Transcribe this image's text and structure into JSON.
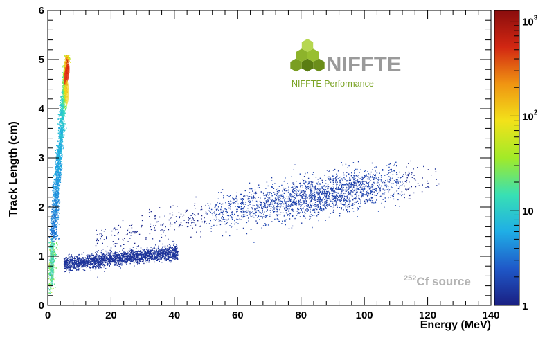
{
  "chart_data": {
    "type": "heatmap",
    "title": "",
    "xlabel": "Energy (MeV)",
    "ylabel": "Track Length (cm)",
    "xlim": [
      0,
      140
    ],
    "ylim": [
      0,
      6
    ],
    "x_ticks": [
      "0",
      "20",
      "40",
      "60",
      "80",
      "100",
      "120",
      "140"
    ],
    "y_ticks": [
      "0",
      "1",
      "2",
      "3",
      "4",
      "5",
      "6"
    ],
    "colorbar": {
      "scale": "log",
      "range": [
        1,
        1300
      ],
      "labels": [
        {
          "base": "1",
          "exp": "",
          "value": 1
        },
        {
          "base": "10",
          "exp": "",
          "value": 10
        },
        {
          "base": "10",
          "exp": "2",
          "value": 100
        },
        {
          "base": "10",
          "exp": "3",
          "value": 1000
        }
      ],
      "colors": [
        "#1a1f82",
        "#1f58c8",
        "#1faee6",
        "#38e0b4",
        "#a2ea28",
        "#f2e21a",
        "#f09512",
        "#d22712",
        "#8a0d0d"
      ]
    },
    "bands": [
      {
        "name": "",
        "kind": "alpha",
        "energy_range": [
          0,
          7
        ],
        "length_range": [
          0.3,
          5.1
        ],
        "peak": {
          "x": 6,
          "y": 4.7
        },
        "peak_count": 1300
      },
      {
        "name": "",
        "kind": "fission fragments",
        "energy_range": [
          10,
          125
        ],
        "length_range": [
          0.8,
          2.9
        ],
        "center_start": {
          "x": 15,
          "y": 1.3
        },
        "center_end": {
          "x": 110,
          "y": 2.5
        }
      },
      {
        "name": "",
        "kind": "secondary band",
        "energy_range": [
          5,
          35
        ],
        "center_start": {
          "x": 5,
          "y": 0.85
        },
        "center_end": {
          "x": 35,
          "y": 1.05
        }
      }
    ],
    "annotation": {
      "sup": "252",
      "text": "Cf source"
    },
    "logo": {
      "text": "NIFFTE",
      "subtitle": "NIFFTE Performance"
    }
  }
}
